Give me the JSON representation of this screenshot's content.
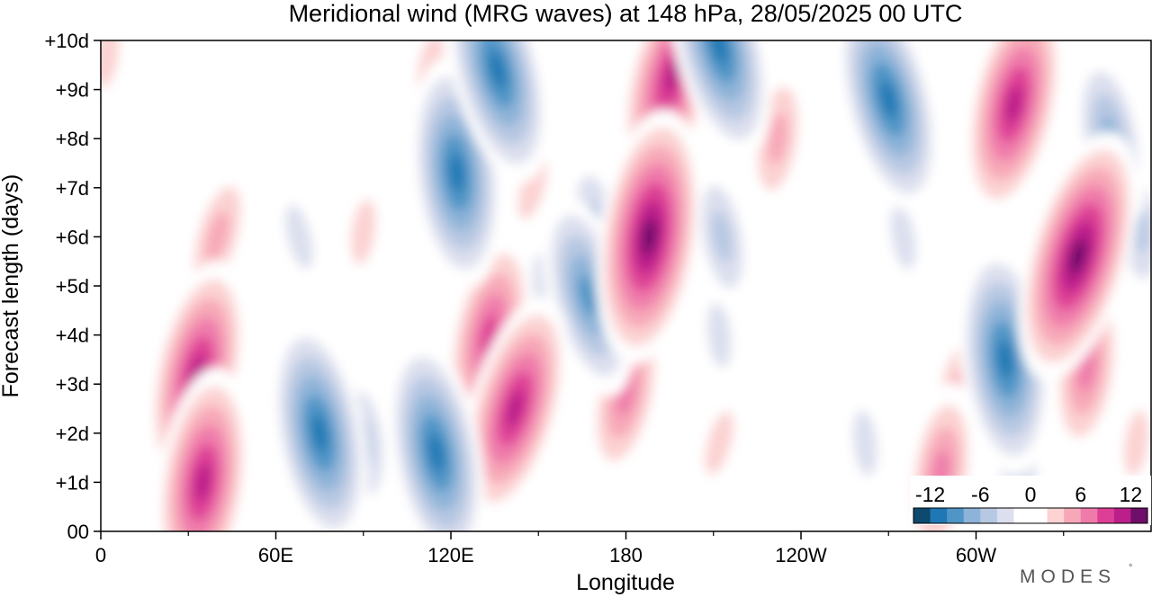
{
  "chart_data": {
    "type": "heatmap",
    "title": "Meridional wind (MRG waves) at  148 hPa,  28/05/2025  00 UTC",
    "xlabel": "Longitude",
    "ylabel": "Forecast length (days)",
    "x_ticks": [
      "0",
      "60E",
      "120E",
      "180",
      "120W",
      "60W"
    ],
    "y_ticks": [
      "00",
      "+1d",
      "+2d",
      "+3d",
      "+4d",
      "+5d",
      "+6d",
      "+7d",
      "+8d",
      "+9d",
      "+10d"
    ],
    "xlim_deg_east": [
      0,
      360
    ],
    "ylim_days": [
      0,
      10
    ],
    "colorbar": {
      "ticks": [
        "-12",
        "-6",
        "0",
        "6",
        "12"
      ],
      "range": [
        -14,
        14
      ],
      "placement": "bottom-right",
      "colors": [
        "#0d4a6e",
        "#1f78b4",
        "#4f95c6",
        "#8db3d8",
        "#b7c8e2",
        "#dcdfee",
        "#ffffff",
        "#ffffff",
        "#fcd2d2",
        "#f7a8b8",
        "#ef7bab",
        "#de3f96",
        "#ba1f8a",
        "#6e0f6a"
      ]
    },
    "grid": false,
    "features": [
      {
        "lon": 35,
        "day": 1.0,
        "value": 12
      },
      {
        "lon": 33,
        "day": 3.2,
        "value": 11
      },
      {
        "lon": 40,
        "day": 6.0,
        "value": 6
      },
      {
        "lon": 2,
        "day": 9.7,
        "value": 4
      },
      {
        "lon": 75,
        "day": 2.0,
        "value": -11
      },
      {
        "lon": 90,
        "day": 1.8,
        "value": -6
      },
      {
        "lon": 68,
        "day": 6.0,
        "value": -4
      },
      {
        "lon": 115,
        "day": 1.6,
        "value": -12
      },
      {
        "lon": 122,
        "day": 7.3,
        "value": -12
      },
      {
        "lon": 136,
        "day": 9.4,
        "value": -12
      },
      {
        "lon": 133,
        "day": 4.0,
        "value": 10
      },
      {
        "lon": 142,
        "day": 2.5,
        "value": 11
      },
      {
        "lon": 90,
        "day": 6.1,
        "value": 3
      },
      {
        "lon": 113,
        "day": 9.5,
        "value": 4
      },
      {
        "lon": 148,
        "day": 7.0,
        "value": 4
      },
      {
        "lon": 167,
        "day": 4.8,
        "value": -9
      },
      {
        "lon": 170,
        "day": 6.2,
        "value": -6
      },
      {
        "lon": 152,
        "day": 5.0,
        "value": -4
      },
      {
        "lon": 188,
        "day": 6.0,
        "value": 13
      },
      {
        "lon": 180,
        "day": 2.8,
        "value": 8
      },
      {
        "lon": 196,
        "day": 9.3,
        "value": 11
      },
      {
        "lon": 212,
        "day": 9.9,
        "value": -12
      },
      {
        "lon": 213,
        "day": 6.0,
        "value": -5
      },
      {
        "lon": 212,
        "day": 4.0,
        "value": -4
      },
      {
        "lon": 232,
        "day": 8.0,
        "value": 5
      },
      {
        "lon": 230,
        "day": 3.0,
        "value": 2
      },
      {
        "lon": 212,
        "day": 1.8,
        "value": 4
      },
      {
        "lon": 270,
        "day": 8.8,
        "value": -12
      },
      {
        "lon": 275,
        "day": 6.0,
        "value": -4
      },
      {
        "lon": 262,
        "day": 1.8,
        "value": -4
      },
      {
        "lon": 288,
        "day": 1.2,
        "value": 8
      },
      {
        "lon": 294,
        "day": 2.8,
        "value": 5
      },
      {
        "lon": 310,
        "day": 3.5,
        "value": -11
      },
      {
        "lon": 313,
        "day": 1.6,
        "value": -6
      },
      {
        "lon": 313,
        "day": 8.7,
        "value": 11
      },
      {
        "lon": 335,
        "day": 5.6,
        "value": 14
      },
      {
        "lon": 338,
        "day": 3.3,
        "value": 8
      },
      {
        "lon": 346,
        "day": 8.0,
        "value": -8
      },
      {
        "lon": 356,
        "day": 6.2,
        "value": -5
      },
      {
        "lon": 355,
        "day": 1.8,
        "value": 3
      }
    ]
  },
  "brand": {
    "text": "MODES",
    "mark": "°"
  }
}
